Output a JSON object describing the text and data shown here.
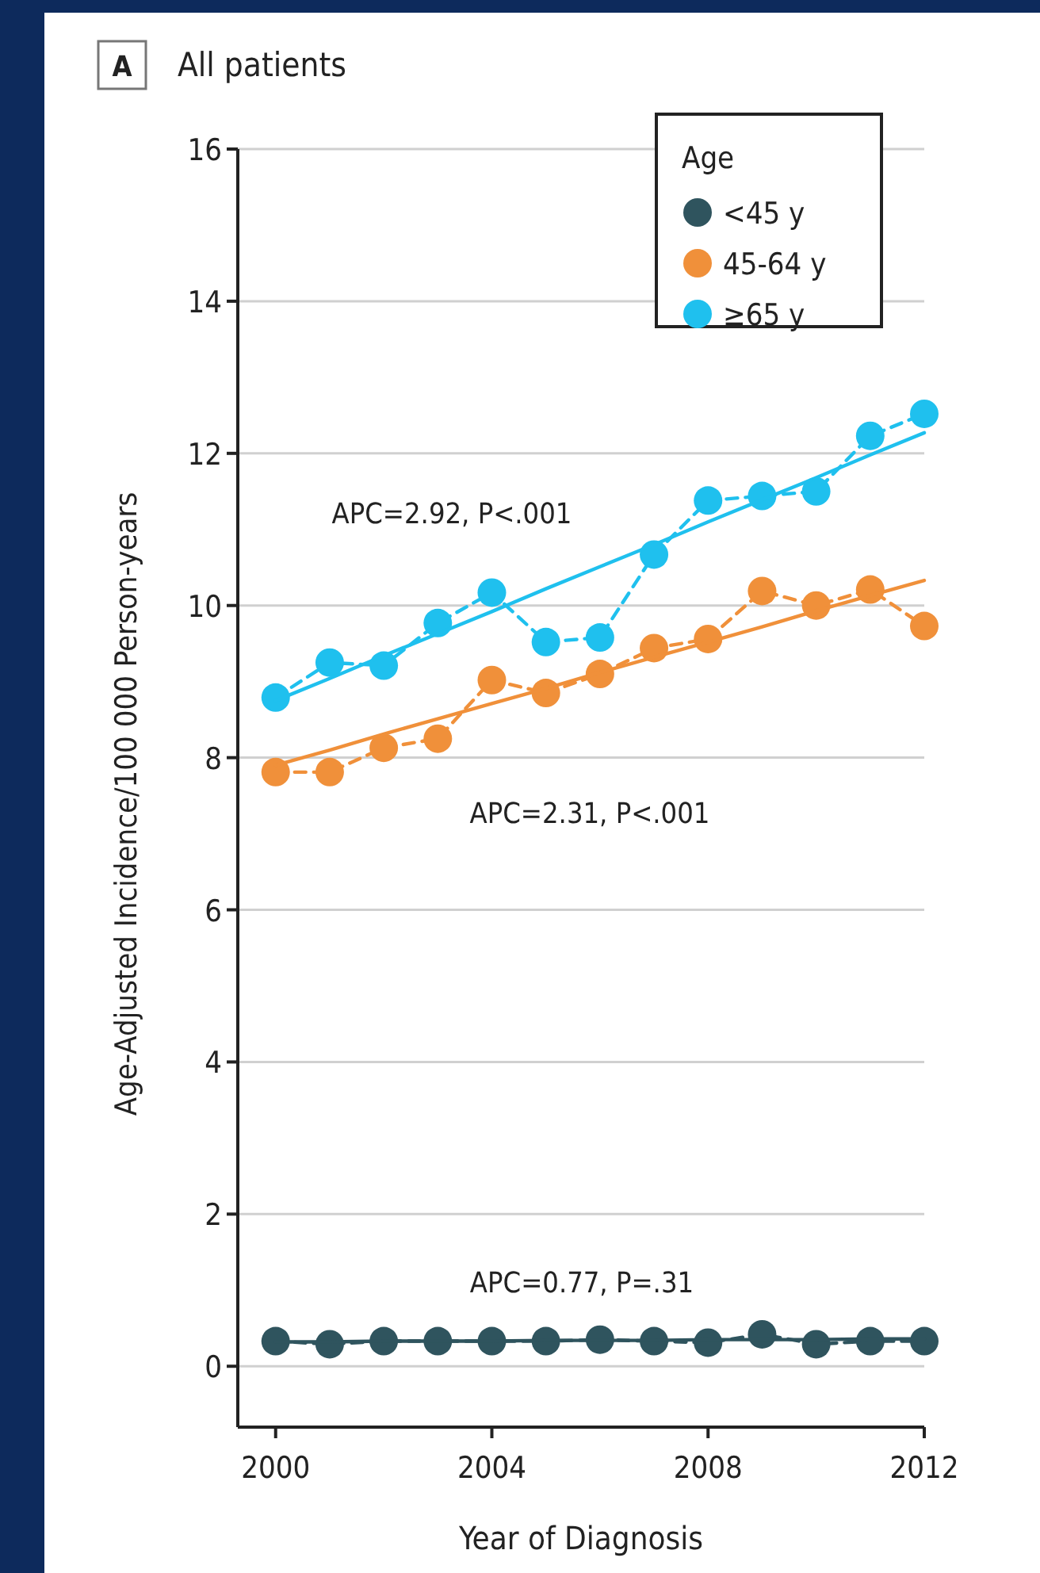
{
  "chart_data": {
    "type": "line",
    "title": "All patients",
    "xlabel": "Year of Diagnosis",
    "ylabel": "Age-Adjusted Incidence/100 000 Person-years",
    "legend_title": "Age",
    "annotations": [
      "A",
      "APC=2.92, P<.001",
      "APC=2.31, P<.001",
      "APC=0.77, P=.31"
    ],
    "x": [
      2000,
      2001,
      2002,
      2003,
      2004,
      2005,
      2006,
      2007,
      2008,
      2009,
      2010,
      2011,
      2012
    ],
    "series": [
      {
        "name": "<45 y",
        "color": "#2f545e",
        "marker": "circle",
        "line_style": "dashed",
        "values": [
          0.33,
          0.29,
          0.33,
          0.33,
          0.33,
          0.33,
          0.35,
          0.33,
          0.31,
          0.42,
          0.29,
          0.33,
          0.33
        ]
      },
      {
        "name": "45-64 y",
        "color": "#f0903a",
        "marker": "circle",
        "line_style": "dashed",
        "values": [
          7.81,
          7.81,
          8.13,
          8.25,
          9.02,
          8.85,
          9.1,
          9.44,
          9.56,
          10.19,
          10.0,
          10.21,
          9.73
        ]
      },
      {
        "name": "≥65 y",
        "color": "#1fc0ee",
        "marker": "circle",
        "line_style": "dashed",
        "values": [
          8.79,
          9.25,
          9.21,
          9.77,
          10.17,
          9.52,
          9.58,
          10.67,
          11.38,
          11.44,
          11.5,
          12.23,
          12.52
        ]
      },
      {
        "color": "#2f545e",
        "marker": "none",
        "line_style": "solid",
        "values": [
          0.32,
          0.32,
          0.33,
          0.33,
          0.33,
          0.34,
          0.34,
          0.34,
          0.35,
          0.35,
          0.35,
          0.36,
          0.36
        ]
      },
      {
        "color": "#f0903a",
        "marker": "none",
        "line_style": "solid",
        "values": [
          7.9,
          8.1,
          8.31,
          8.51,
          8.71,
          8.91,
          9.12,
          9.32,
          9.52,
          9.72,
          9.93,
          10.13,
          10.33
        ]
      },
      {
        "color": "#1fc0ee",
        "marker": "none",
        "line_style": "solid",
        "values": [
          8.75,
          9.04,
          9.34,
          9.63,
          9.92,
          10.22,
          10.51,
          10.8,
          11.1,
          11.39,
          11.68,
          11.98,
          12.27
        ]
      }
    ],
    "xlim": [
      1999.3,
      2012
    ],
    "ylim": [
      -0.8,
      16
    ],
    "xticks": [
      2000,
      2004,
      2008,
      2012
    ],
    "yticks": [
      0,
      2,
      4,
      6,
      8,
      10,
      12,
      14,
      16
    ],
    "grid": "y",
    "legend": "top right"
  }
}
